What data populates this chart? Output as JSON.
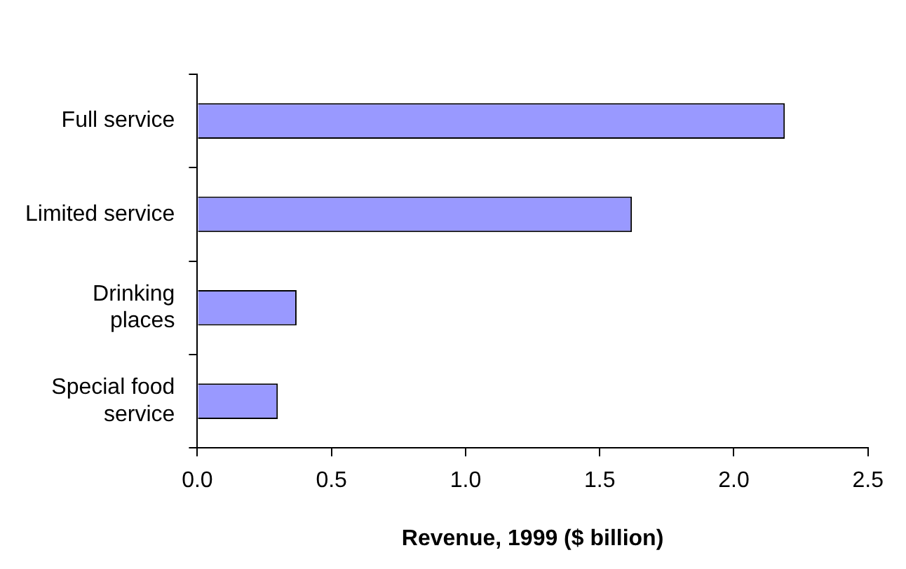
{
  "chart_data": {
    "type": "bar",
    "orientation": "horizontal",
    "xlabel": "Revenue, 1999 ($ billion)",
    "categories": [
      "Full service",
      "Limited service",
      "Drinking\nplaces",
      "Special food\nservice"
    ],
    "values": [
      2.19,
      1.62,
      0.37,
      0.3
    ],
    "color": "#9999ff",
    "xlim": [
      0,
      2.5
    ],
    "xticks": [
      {
        "value": 0,
        "label": "0.0"
      },
      {
        "value": 0.5,
        "label": "0.5"
      },
      {
        "value": 1,
        "label": "1.0"
      },
      {
        "value": 1.5,
        "label": "1.5"
      },
      {
        "value": 2,
        "label": "2.0"
      },
      {
        "value": 2.5,
        "label": "2.5"
      }
    ],
    "grid": false,
    "legend": false
  }
}
